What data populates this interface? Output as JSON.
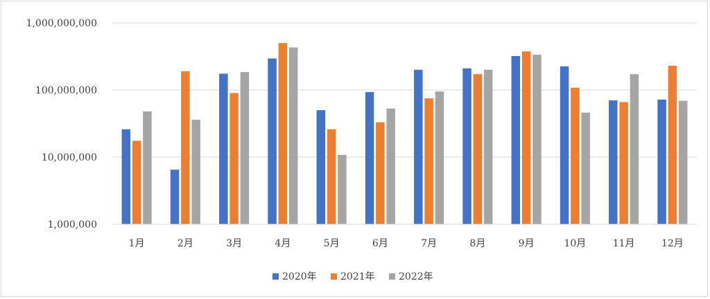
{
  "chart_data": {
    "type": "bar",
    "title": "",
    "xlabel": "",
    "ylabel": "",
    "y_scale": "log",
    "ylim": [
      1000000,
      1000000000
    ],
    "y_ticks": [
      {
        "value": 1000000,
        "label": "1,000,000"
      },
      {
        "value": 10000000,
        "label": "10,000,000"
      },
      {
        "value": 100000000,
        "label": "100,000,000"
      },
      {
        "value": 1000000000,
        "label": "1,000,000,000"
      }
    ],
    "grid": true,
    "legend_position": "bottom",
    "categories": [
      "1月",
      "2月",
      "3月",
      "4月",
      "5月",
      "6月",
      "7月",
      "8月",
      "9月",
      "10月",
      "11月",
      "12月"
    ],
    "series": [
      {
        "name": "2020年",
        "color": "#4472c4",
        "values": [
          26000000,
          6500000,
          175000000,
          295000000,
          50000000,
          93000000,
          200000000,
          210000000,
          320000000,
          225000000,
          70000000,
          72000000
        ]
      },
      {
        "name": "2021年",
        "color": "#ed7d31",
        "values": [
          17500000,
          190000000,
          90000000,
          500000000,
          26000000,
          33000000,
          75000000,
          172000000,
          375000000,
          108000000,
          66000000,
          230000000
        ]
      },
      {
        "name": "2022年",
        "color": "#a5a5a5",
        "values": [
          48000000,
          36000000,
          185000000,
          430000000,
          10800000,
          53000000,
          95000000,
          200000000,
          335000000,
          46000000,
          172000000,
          69000000
        ]
      }
    ]
  }
}
